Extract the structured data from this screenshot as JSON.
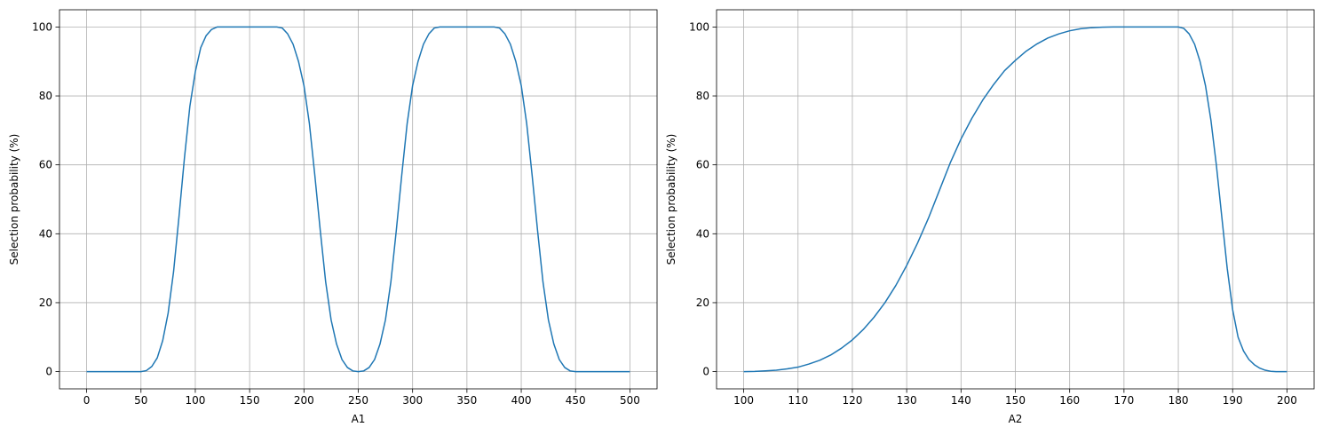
{
  "chart_data": [
    {
      "type": "line",
      "title": "",
      "xlabel": "A1",
      "ylabel": "Selection probability (%)",
      "xlim": [
        -25,
        525
      ],
      "ylim": [
        -5,
        105
      ],
      "xticks": [
        0,
        50,
        100,
        150,
        200,
        250,
        300,
        350,
        400,
        450,
        500
      ],
      "yticks": [
        0,
        20,
        40,
        60,
        80,
        100
      ],
      "grid": true,
      "color": "#1f77b4",
      "series": [
        {
          "x": [
            0,
            50,
            55,
            60,
            65,
            70,
            75,
            80,
            85,
            90,
            95,
            100,
            105,
            110,
            115,
            120,
            125,
            130,
            150,
            170,
            175,
            180,
            185,
            190,
            195,
            200,
            205,
            210,
            215,
            220,
            225,
            230,
            235,
            240,
            245,
            250,
            255,
            260,
            265,
            270,
            275,
            280,
            285,
            290,
            295,
            300,
            305,
            310,
            315,
            320,
            325,
            330,
            350,
            370,
            375,
            380,
            385,
            390,
            395,
            400,
            405,
            410,
            415,
            420,
            425,
            430,
            435,
            440,
            445,
            450,
            500
          ],
          "y": [
            0,
            0,
            0.3,
            1.5,
            4,
            9,
            17,
            29,
            45,
            62,
            77,
            87,
            94,
            97.5,
            99.3,
            100,
            100,
            100,
            100,
            100,
            100,
            99.7,
            98,
            95,
            90,
            83,
            72,
            57,
            41,
            26,
            15,
            8,
            3.5,
            1.2,
            0.2,
            0,
            0.2,
            1.2,
            3.5,
            8,
            15,
            26,
            41,
            57,
            72,
            83,
            90,
            95,
            98,
            99.7,
            100,
            100,
            100,
            100,
            100,
            99.7,
            98,
            95,
            90,
            83,
            72,
            57,
            41,
            26,
            15,
            8,
            3.5,
            1.2,
            0.2,
            0,
            0
          ]
        }
      ]
    },
    {
      "type": "line",
      "title": "",
      "xlabel": "A2",
      "ylabel": "Selection probability (%)",
      "xlim": [
        95,
        205
      ],
      "ylim": [
        -5,
        105
      ],
      "xticks": [
        100,
        110,
        120,
        130,
        140,
        150,
        160,
        170,
        180,
        190,
        200
      ],
      "yticks": [
        0,
        20,
        40,
        60,
        80,
        100
      ],
      "grid": true,
      "color": "#1f77b4",
      "series": [
        {
          "x": [
            100,
            102,
            104,
            106,
            108,
            110,
            112,
            114,
            116,
            118,
            120,
            122,
            124,
            126,
            128,
            130,
            132,
            134,
            136,
            138,
            140,
            142,
            144,
            146,
            148,
            150,
            152,
            154,
            156,
            158,
            160,
            162,
            164,
            166,
            168,
            170,
            172,
            174,
            176,
            178,
            180,
            181,
            182,
            183,
            184,
            185,
            186,
            187,
            188,
            189,
            190,
            191,
            192,
            193,
            194,
            195,
            196,
            197,
            198,
            199,
            200
          ],
          "y": [
            0,
            0.05,
            0.2,
            0.4,
            0.8,
            1.3,
            2.2,
            3.3,
            4.8,
            6.8,
            9.2,
            12.2,
            15.8,
            20,
            25,
            30.8,
            37.3,
            44.5,
            52.5,
            60.5,
            67.5,
            73.5,
            78.8,
            83.3,
            87.3,
            90.3,
            93,
            95.1,
            96.8,
            98,
            98.9,
            99.5,
            99.8,
            99.95,
            100,
            100,
            100,
            100,
            100,
            100,
            100,
            99.6,
            98,
            95,
            90,
            83,
            73,
            60,
            45,
            30,
            18,
            10,
            6,
            3.5,
            2,
            1,
            0.4,
            0.1,
            0,
            0,
            0
          ]
        }
      ]
    }
  ]
}
